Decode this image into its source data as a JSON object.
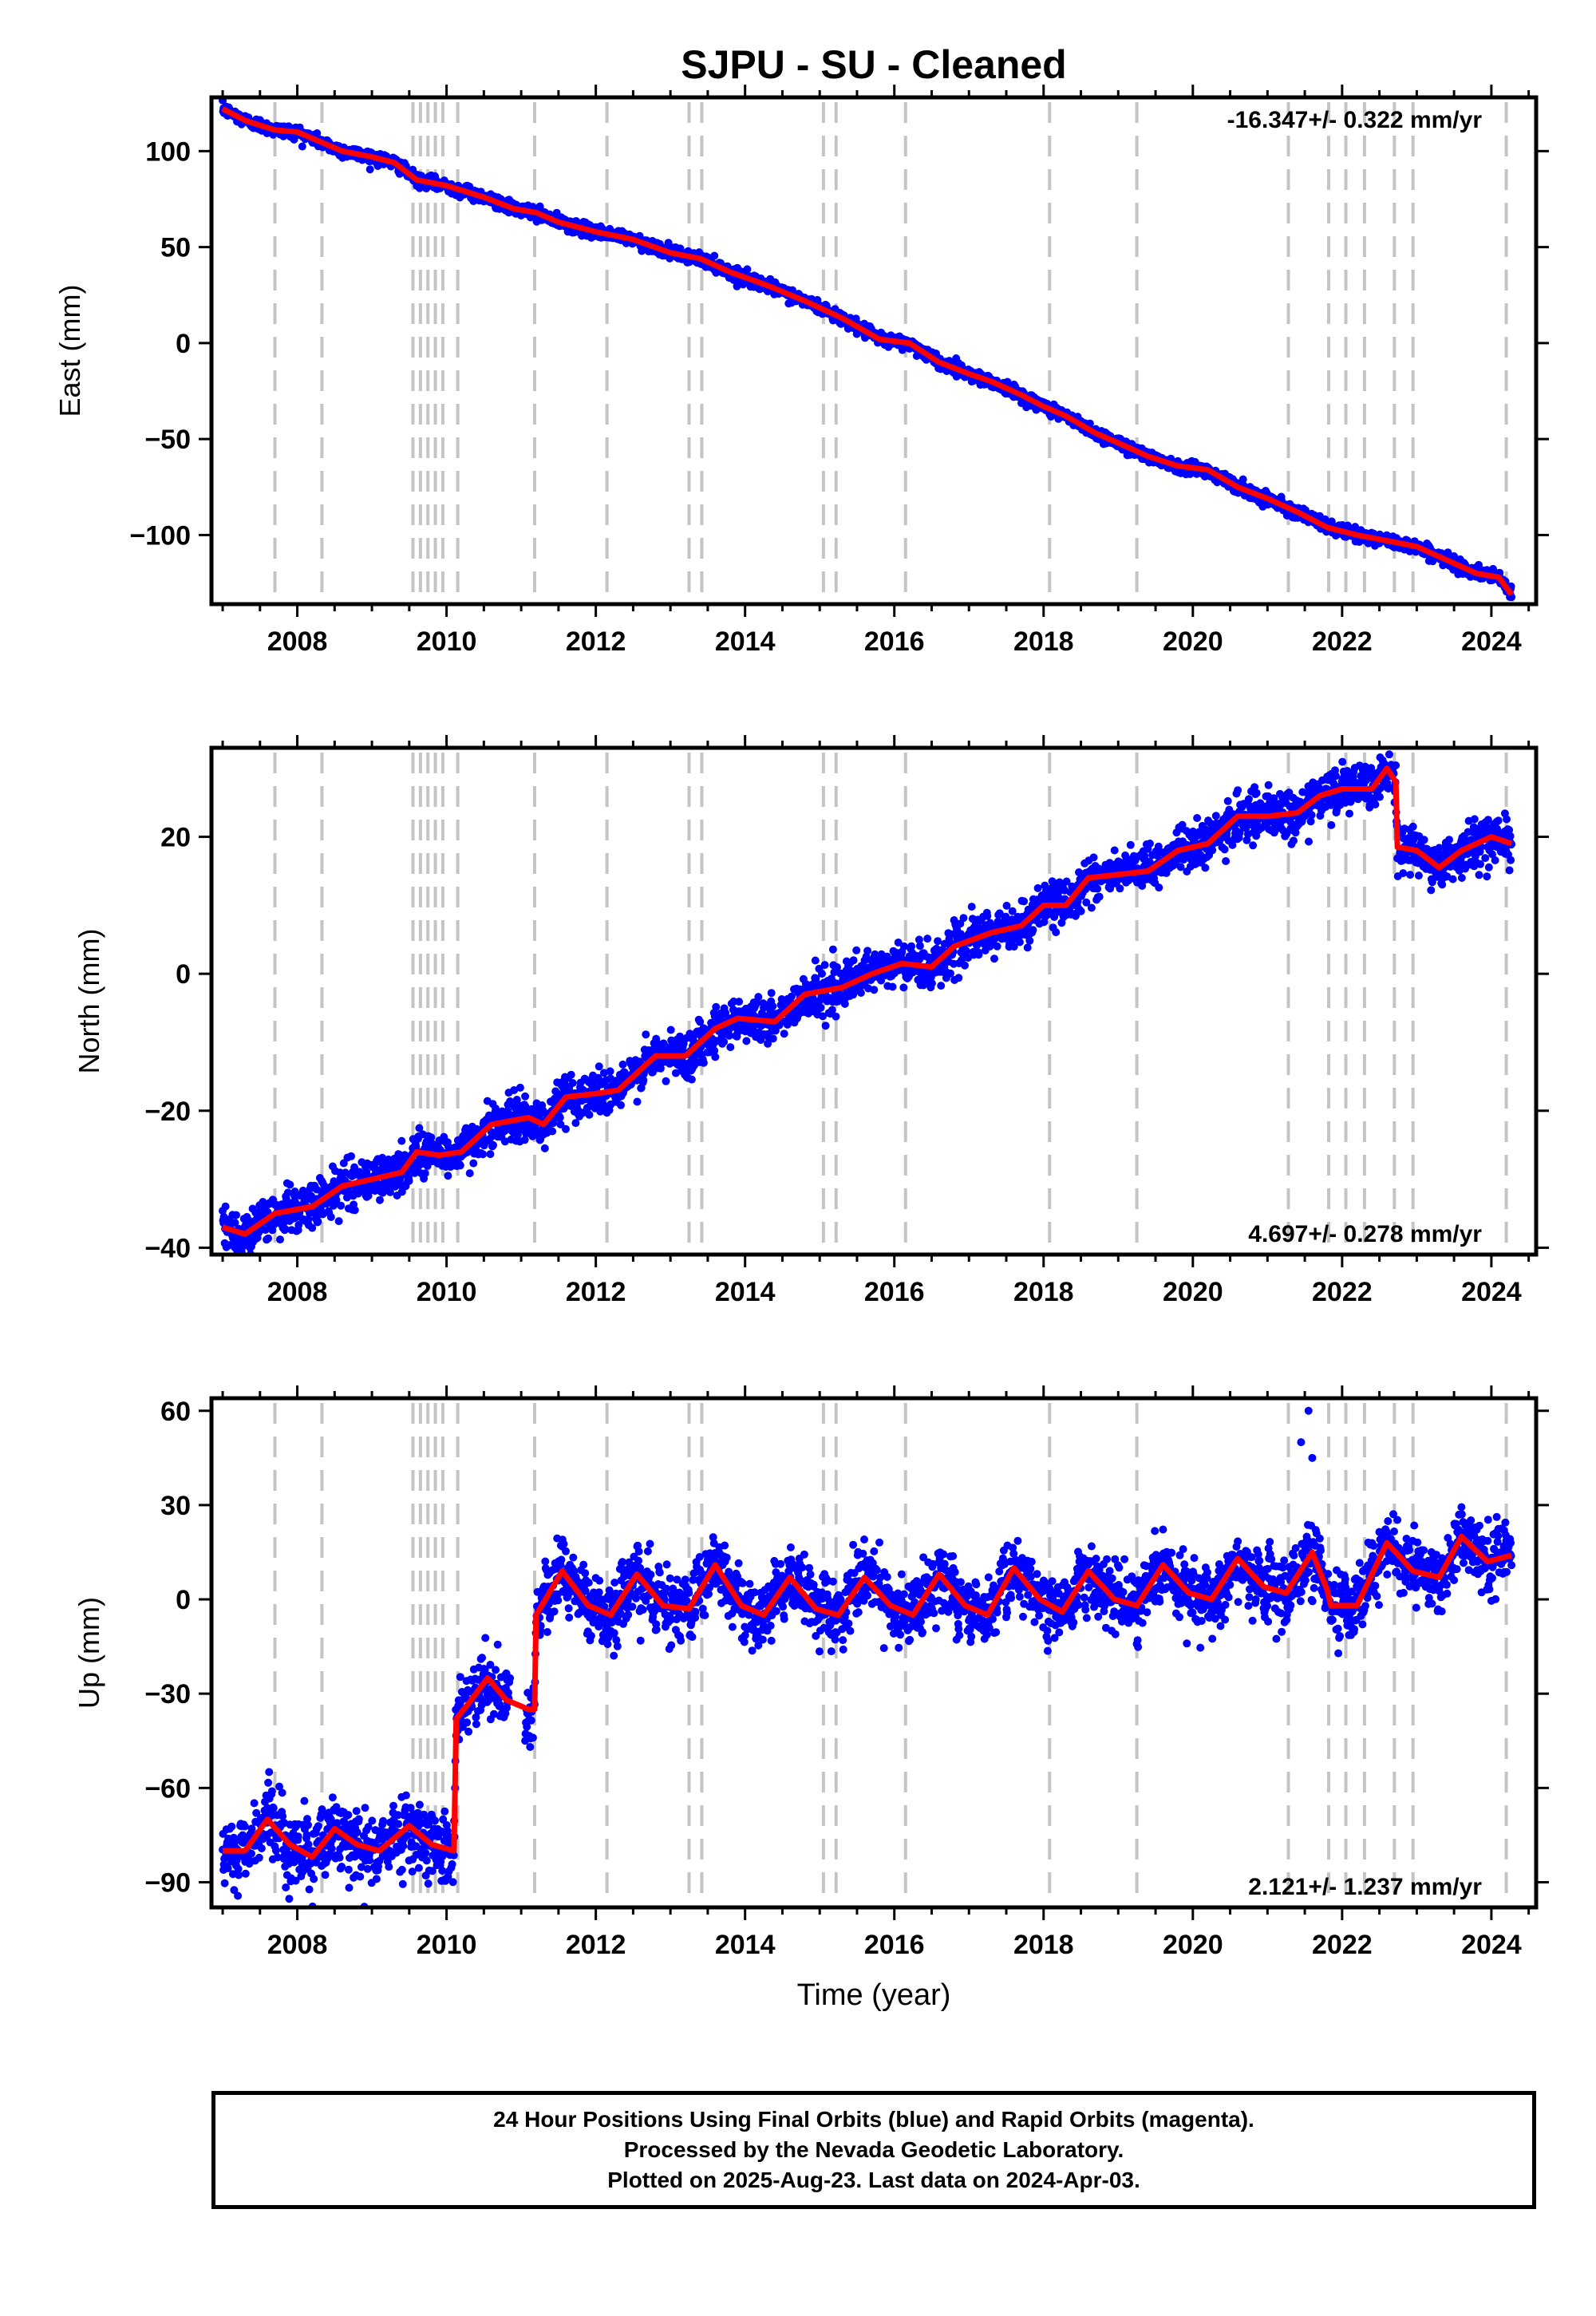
{
  "chart_data": {
    "type": "scatter",
    "title": "SJPU  - SU - Cleaned",
    "xlabel": "Time (year)",
    "xlim": [
      2006.85,
      2024.6
    ],
    "xticks": [
      2008,
      2010,
      2012,
      2014,
      2016,
      2018,
      2020,
      2022,
      2024
    ],
    "xtick_labels": [
      "2008",
      "2010",
      "2012",
      "2014",
      "2016",
      "2018",
      "2020",
      "2022",
      "2024"
    ],
    "grid": false,
    "event_lines": [
      2007.7,
      2008.33,
      2009.55,
      2009.65,
      2009.75,
      2009.85,
      2009.95,
      2010.15,
      2011.18,
      2012.15,
      2013.25,
      2013.42,
      2015.05,
      2015.22,
      2016.15,
      2018.08,
      2019.25,
      2021.28,
      2021.82,
      2022.05,
      2022.3,
      2022.7,
      2022.95,
      2024.2
    ],
    "panels": [
      {
        "name": "east",
        "ylabel": "East (mm)",
        "ylim": [
          -136,
          128
        ],
        "yticks": [
          100,
          50,
          0,
          -50,
          -100
        ],
        "ytick_labels": [
          "100",
          "50",
          "0",
          "−50",
          "−100"
        ],
        "rate_label": "-16.347+/- 0.322 mm/yr",
        "rate_position": "top-right",
        "noise": 1.6,
        "model": [
          [
            2007.0,
            122
          ],
          [
            2007.3,
            116
          ],
          [
            2007.7,
            111
          ],
          [
            2008.0,
            110
          ],
          [
            2008.3,
            105
          ],
          [
            2008.6,
            100
          ],
          [
            2009.0,
            97
          ],
          [
            2009.3,
            94
          ],
          [
            2009.6,
            85
          ],
          [
            2010.0,
            82
          ],
          [
            2010.5,
            76
          ],
          [
            2010.9,
            70
          ],
          [
            2011.2,
            68
          ],
          [
            2011.5,
            63
          ],
          [
            2012.0,
            58
          ],
          [
            2012.5,
            54
          ],
          [
            2013.0,
            47
          ],
          [
            2013.4,
            44
          ],
          [
            2013.8,
            37
          ],
          [
            2014.3,
            30
          ],
          [
            2014.8,
            22
          ],
          [
            2015.3,
            13
          ],
          [
            2015.8,
            2
          ],
          [
            2016.2,
            0
          ],
          [
            2016.6,
            -10
          ],
          [
            2017.0,
            -16
          ],
          [
            2017.3,
            -20
          ],
          [
            2017.7,
            -27
          ],
          [
            2018.0,
            -33
          ],
          [
            2018.3,
            -38
          ],
          [
            2018.7,
            -47
          ],
          [
            2019.0,
            -52
          ],
          [
            2019.4,
            -59
          ],
          [
            2019.8,
            -64
          ],
          [
            2020.2,
            -66
          ],
          [
            2020.6,
            -75
          ],
          [
            2021.0,
            -81
          ],
          [
            2021.4,
            -88
          ],
          [
            2021.8,
            -96
          ],
          [
            2022.2,
            -100
          ],
          [
            2022.6,
            -103
          ],
          [
            2023.0,
            -106
          ],
          [
            2023.4,
            -113
          ],
          [
            2023.8,
            -120
          ],
          [
            2024.1,
            -122
          ],
          [
            2024.27,
            -131
          ]
        ]
      },
      {
        "name": "north",
        "ylabel": "North (mm)",
        "ylim": [
          -41,
          33
        ],
        "yticks": [
          20,
          0,
          -20,
          -40
        ],
        "ytick_labels": [
          "20",
          "0",
          "−20",
          "−40"
        ],
        "rate_label": "4.697+/- 0.278 mm/yr",
        "rate_position": "bottom-right",
        "noise": 1.6,
        "model": [
          [
            2007.0,
            -37
          ],
          [
            2007.3,
            -38
          ],
          [
            2007.7,
            -35
          ],
          [
            2008.2,
            -34
          ],
          [
            2008.6,
            -31
          ],
          [
            2009.0,
            -30
          ],
          [
            2009.4,
            -29
          ],
          [
            2009.6,
            -26
          ],
          [
            2009.9,
            -26.5
          ],
          [
            2010.2,
            -26
          ],
          [
            2010.6,
            -22
          ],
          [
            2011.1,
            -21
          ],
          [
            2011.3,
            -22
          ],
          [
            2011.6,
            -18
          ],
          [
            2012.0,
            -17.5
          ],
          [
            2012.3,
            -17
          ],
          [
            2012.8,
            -12
          ],
          [
            2013.2,
            -12
          ],
          [
            2013.6,
            -8
          ],
          [
            2013.9,
            -6.5
          ],
          [
            2014.4,
            -7
          ],
          [
            2014.8,
            -3
          ],
          [
            2015.3,
            -2
          ],
          [
            2015.7,
            0
          ],
          [
            2016.1,
            1.5
          ],
          [
            2016.5,
            1
          ],
          [
            2016.8,
            4
          ],
          [
            2017.3,
            6
          ],
          [
            2017.7,
            7
          ],
          [
            2018.0,
            10
          ],
          [
            2018.3,
            10
          ],
          [
            2018.6,
            14
          ],
          [
            2019.0,
            14.5
          ],
          [
            2019.4,
            15
          ],
          [
            2019.8,
            18
          ],
          [
            2020.2,
            19
          ],
          [
            2020.6,
            23
          ],
          [
            2021.0,
            23
          ],
          [
            2021.4,
            23.5
          ],
          [
            2021.7,
            26
          ],
          [
            2022.0,
            27
          ],
          [
            2022.4,
            27
          ],
          [
            2022.6,
            30
          ],
          [
            2022.72,
            28
          ],
          [
            2022.74,
            18.5
          ],
          [
            2023.0,
            18
          ],
          [
            2023.3,
            15.5
          ],
          [
            2023.6,
            18
          ],
          [
            2024.0,
            20
          ],
          [
            2024.27,
            19
          ]
        ]
      },
      {
        "name": "up",
        "ylabel": "Up (mm)",
        "ylim": [
          -98,
          64
        ],
        "yticks": [
          60,
          30,
          0,
          -30,
          -60,
          -90
        ],
        "ytick_labels": [
          "60",
          "30",
          "0",
          "−30",
          "−60",
          "−90"
        ],
        "rate_label": "2.121+/- 1.237 mm/yr",
        "rate_position": "bottom-right",
        "noise": 5.0,
        "model": [
          [
            2007.0,
            -80
          ],
          [
            2007.3,
            -80
          ],
          [
            2007.6,
            -70
          ],
          [
            2007.9,
            -78
          ],
          [
            2008.2,
            -82
          ],
          [
            2008.5,
            -73
          ],
          [
            2008.8,
            -78
          ],
          [
            2009.1,
            -80
          ],
          [
            2009.5,
            -72
          ],
          [
            2009.8,
            -78
          ],
          [
            2010.1,
            -80
          ],
          [
            2010.13,
            -38
          ],
          [
            2010.3,
            -33
          ],
          [
            2010.55,
            -25
          ],
          [
            2010.8,
            -32
          ],
          [
            2011.1,
            -35
          ],
          [
            2011.18,
            -35
          ],
          [
            2011.2,
            -5
          ],
          [
            2011.55,
            9
          ],
          [
            2011.9,
            -2
          ],
          [
            2012.2,
            -5
          ],
          [
            2012.55,
            8
          ],
          [
            2012.9,
            -2
          ],
          [
            2013.25,
            -3
          ],
          [
            2013.6,
            11
          ],
          [
            2013.95,
            -2
          ],
          [
            2014.25,
            -5
          ],
          [
            2014.6,
            7
          ],
          [
            2014.95,
            -3
          ],
          [
            2015.25,
            -5
          ],
          [
            2015.6,
            7
          ],
          [
            2015.95,
            -2
          ],
          [
            2016.25,
            -5
          ],
          [
            2016.6,
            8
          ],
          [
            2016.95,
            -2
          ],
          [
            2017.25,
            -5
          ],
          [
            2017.6,
            10
          ],
          [
            2017.95,
            0
          ],
          [
            2018.25,
            -4
          ],
          [
            2018.6,
            9
          ],
          [
            2018.95,
            0
          ],
          [
            2019.25,
            -2
          ],
          [
            2019.6,
            11
          ],
          [
            2019.95,
            2
          ],
          [
            2020.25,
            0
          ],
          [
            2020.6,
            13
          ],
          [
            2020.95,
            4
          ],
          [
            2021.25,
            2
          ],
          [
            2021.6,
            15
          ],
          [
            2021.8,
            3
          ],
          [
            2021.85,
            -2
          ],
          [
            2022.2,
            -2
          ],
          [
            2022.6,
            18
          ],
          [
            2022.95,
            9
          ],
          [
            2023.3,
            7
          ],
          [
            2023.6,
            20
          ],
          [
            2023.95,
            12
          ],
          [
            2024.27,
            14
          ]
        ]
      }
    ],
    "series": [
      {
        "name": "24 Hour Positions Final Orbits",
        "color": "#0000ff",
        "marker": "dot"
      },
      {
        "name": "model",
        "color": "#ff0000",
        "marker": "line"
      }
    ],
    "data_gap": [
      2010.85,
      2011.05
    ]
  },
  "footer": {
    "line1": "24 Hour Positions Using Final Orbits (blue) and Rapid Orbits (magenta).",
    "line2": "Processed by the Nevada Geodetic Laboratory.",
    "line3": "Plotted on 2025-Aug-23. Last data on 2024-Apr-03."
  }
}
